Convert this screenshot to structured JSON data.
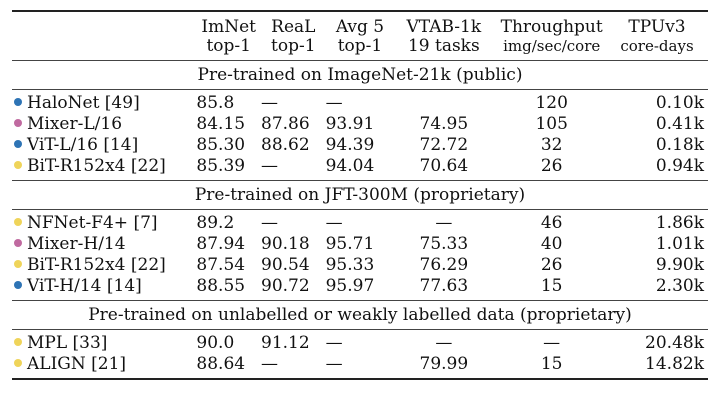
{
  "colors": {
    "halonet": "#2e74b5",
    "mixer": "#c06aa0",
    "vit": "#2e74b5",
    "bit": "#efd45a",
    "nfnet": "#efd45a",
    "mpl": "#efd45a",
    "align": "#efd45a"
  },
  "header": {
    "c1_line1": "ImNet",
    "c1_line2": "top-1",
    "c2_line1": "ReaL",
    "c2_line2": "top-1",
    "c3_line1": "Avg 5",
    "c3_line2": "top-1",
    "c4_line1": "VTAB-1k",
    "c4_line2": "19 tasks",
    "c5_line1": "Throughput",
    "c5_line2": "img/sec/core",
    "c6_line1": "TPUv3",
    "c6_line2": "core-days"
  },
  "groups": [
    {
      "title": "Pre-trained on ImageNet-21k (public)",
      "rows": [
        {
          "model": "HaloNet [49]",
          "color": "#2e74b5",
          "imnet": "85.8",
          "real": "—",
          "avg5": "—",
          "vtab": "",
          "throughput": "120",
          "tpu": "0.10k"
        },
        {
          "model": "Mixer-L/16",
          "color": "#c06aa0",
          "imnet": "84.15",
          "real": "87.86",
          "avg5": "93.91",
          "vtab": "74.95",
          "throughput": "105",
          "tpu": "0.41k"
        },
        {
          "model": "ViT-L/16 [14]",
          "color": "#2e74b5",
          "imnet": "85.30",
          "real": "88.62",
          "avg5": "94.39",
          "vtab": "72.72",
          "throughput": "32",
          "tpu": "0.18k"
        },
        {
          "model": "BiT-R152x4 [22]",
          "color": "#efd45a",
          "imnet": "85.39",
          "real": "—",
          "avg5": "94.04",
          "vtab": "70.64",
          "throughput": "26",
          "tpu": "0.94k"
        }
      ]
    },
    {
      "title": "Pre-trained on JFT-300M (proprietary)",
      "rows": [
        {
          "model": "NFNet-F4+ [7]",
          "color": "#efd45a",
          "imnet": "89.2",
          "real": "—",
          "avg5": "—",
          "vtab": "—",
          "throughput": "46",
          "tpu": "1.86k"
        },
        {
          "model": "Mixer-H/14",
          "color": "#c06aa0",
          "imnet": "87.94",
          "real": "90.18",
          "avg5": "95.71",
          "vtab": "75.33",
          "throughput": "40",
          "tpu": "1.01k"
        },
        {
          "model": "BiT-R152x4 [22]",
          "color": "#efd45a",
          "imnet": "87.54",
          "real": "90.54",
          "avg5": "95.33",
          "vtab": "76.29",
          "throughput": "26",
          "tpu": "9.90k"
        },
        {
          "model": "ViT-H/14 [14]",
          "color": "#2e74b5",
          "imnet": "88.55",
          "real": "90.72",
          "avg5": "95.97",
          "vtab": "77.63",
          "throughput": "15",
          "tpu": "2.30k"
        }
      ]
    },
    {
      "title": "Pre-trained on unlabelled or weakly labelled data (proprietary)",
      "rows": [
        {
          "model": "MPL [33]",
          "color": "#efd45a",
          "imnet": "90.0",
          "real": "91.12",
          "avg5": "—",
          "vtab": "—",
          "throughput": "—",
          "tpu": "20.48k"
        },
        {
          "model": "ALIGN [21]",
          "color": "#efd45a",
          "imnet": "88.64",
          "real": "—",
          "avg5": "—",
          "vtab": "79.99",
          "throughput": "15",
          "tpu": "14.82k"
        }
      ]
    }
  ]
}
